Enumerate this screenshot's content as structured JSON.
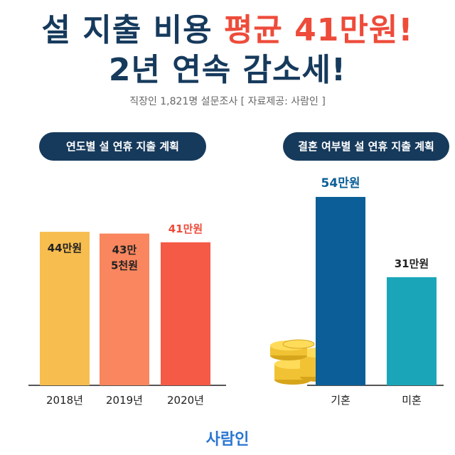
{
  "headline": {
    "line1_prefix": "설 지출 비용 ",
    "line1_highlight": "평균 41만원!",
    "line2": "2년 연속 감소세!"
  },
  "subtitle": "직장인 1,821명 설문조사 [ 자료제공: 사람인 ]",
  "brand": "사람인",
  "chart_data": [
    {
      "type": "bar",
      "title": "연도별 설 연휴 지출 계획",
      "categories": [
        "2018년",
        "2019년",
        "2020년"
      ],
      "values": [
        44,
        43.5,
        41
      ],
      "data_labels": [
        "44만원",
        "43만 5천원",
        "41만원"
      ],
      "colors": [
        "#f7bd4f",
        "#f9865e",
        "#f55a47"
      ],
      "label_colors": [
        "#222222",
        "#222222",
        "#ee4b3a"
      ]
    },
    {
      "type": "bar",
      "title": "결혼 여부별 설 연휴 지출 계획",
      "categories": [
        "기혼",
        "미혼"
      ],
      "values": [
        54,
        31
      ],
      "data_labels": [
        "54만원",
        "31만원"
      ],
      "colors": [
        "#0b5e97",
        "#1aa6b8"
      ],
      "label_colors": [
        "#0b5e97",
        "#222222"
      ]
    }
  ]
}
